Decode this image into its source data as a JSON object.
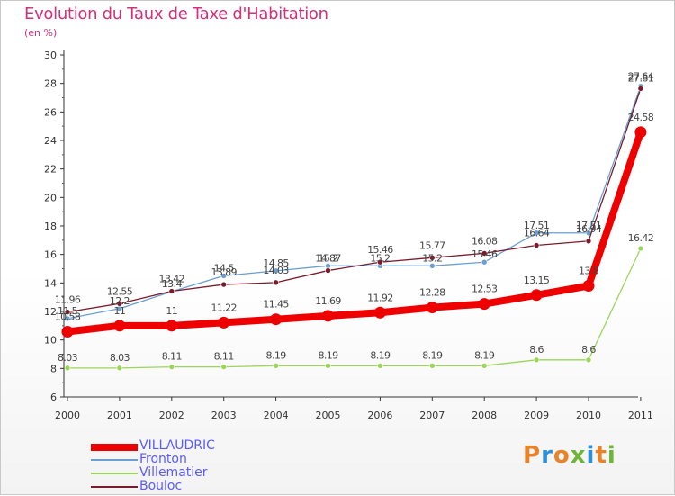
{
  "title": "Evolution du Taux de Taxe d'Habitation",
  "unit": "(en %)",
  "logo": {
    "letters": [
      "P",
      "r",
      "o",
      "x",
      "i",
      "t",
      "i"
    ],
    "colors": [
      "#e8832a",
      "#2f8fd6",
      "#e8832a",
      "#6fb53a",
      "#2f8fd6",
      "#e8832a",
      "#6fb53a"
    ]
  },
  "chart_data": {
    "type": "line",
    "x": [
      "2000",
      "2001",
      "2002",
      "2003",
      "2004",
      "2005",
      "2006",
      "2007",
      "2008",
      "2009",
      "2010",
      "2011"
    ],
    "ylim": [
      6,
      30
    ],
    "yticks": [
      6,
      8,
      10,
      12,
      14,
      16,
      18,
      20,
      22,
      24,
      26,
      28,
      30
    ],
    "grid": false,
    "legend_position": "bottom-left",
    "series": [
      {
        "name": "VILLAUDRIC",
        "color": "#ee0000",
        "values": [
          10.58,
          11,
          11,
          11.22,
          11.45,
          11.69,
          11.92,
          12.28,
          12.53,
          13.15,
          13.8,
          24.58
        ]
      },
      {
        "name": "Fronton",
        "color": "#6a9fcf",
        "values": [
          11.5,
          12.2,
          13.4,
          14.5,
          14.85,
          15.2,
          15.2,
          15.2,
          15.46,
          17.51,
          17.51,
          27.81
        ]
      },
      {
        "name": "Villematier",
        "color": "#9bd65a",
        "values": [
          8.03,
          8.03,
          8.11,
          8.11,
          8.19,
          8.19,
          8.19,
          8.19,
          8.19,
          8.6,
          8.6,
          16.42
        ]
      },
      {
        "name": "Bouloc",
        "color": "#7a1a2a",
        "values": [
          11.96,
          12.55,
          13.42,
          13.89,
          14.03,
          14.87,
          15.46,
          15.77,
          16.08,
          16.64,
          16.94,
          27.64
        ]
      }
    ],
    "data_labels": [
      {
        "series": "Fronton",
        "labels": [
          "11.5",
          "12.2",
          "13.4",
          "14.5",
          "14.85",
          "15.2",
          "15.2",
          "15.2",
          "15.46",
          "17.51",
          "17.51",
          "27.81"
        ]
      },
      {
        "series": "Bouloc",
        "labels": [
          "11.96",
          "12.55",
          "13.42",
          "13.89",
          "14.03",
          "14.87",
          "15.46",
          "15.77",
          "16.08",
          "16.64",
          "16.94",
          "27.64"
        ]
      },
      {
        "series": "VILLAUDRIC",
        "labels": [
          "10.58",
          "11",
          "11",
          "11.22",
          "11.45",
          "11.69",
          "11.92",
          "12.28",
          "12.53",
          "13.15",
          "13.8",
          "24.58"
        ]
      },
      {
        "series": "Villematier",
        "labels": [
          "8.03",
          "8.03",
          "8.11",
          "8.11",
          "8.19",
          "8.19",
          "8.19",
          "8.19",
          "8.19",
          "8.6",
          "8.6",
          "16.42"
        ]
      }
    ]
  }
}
